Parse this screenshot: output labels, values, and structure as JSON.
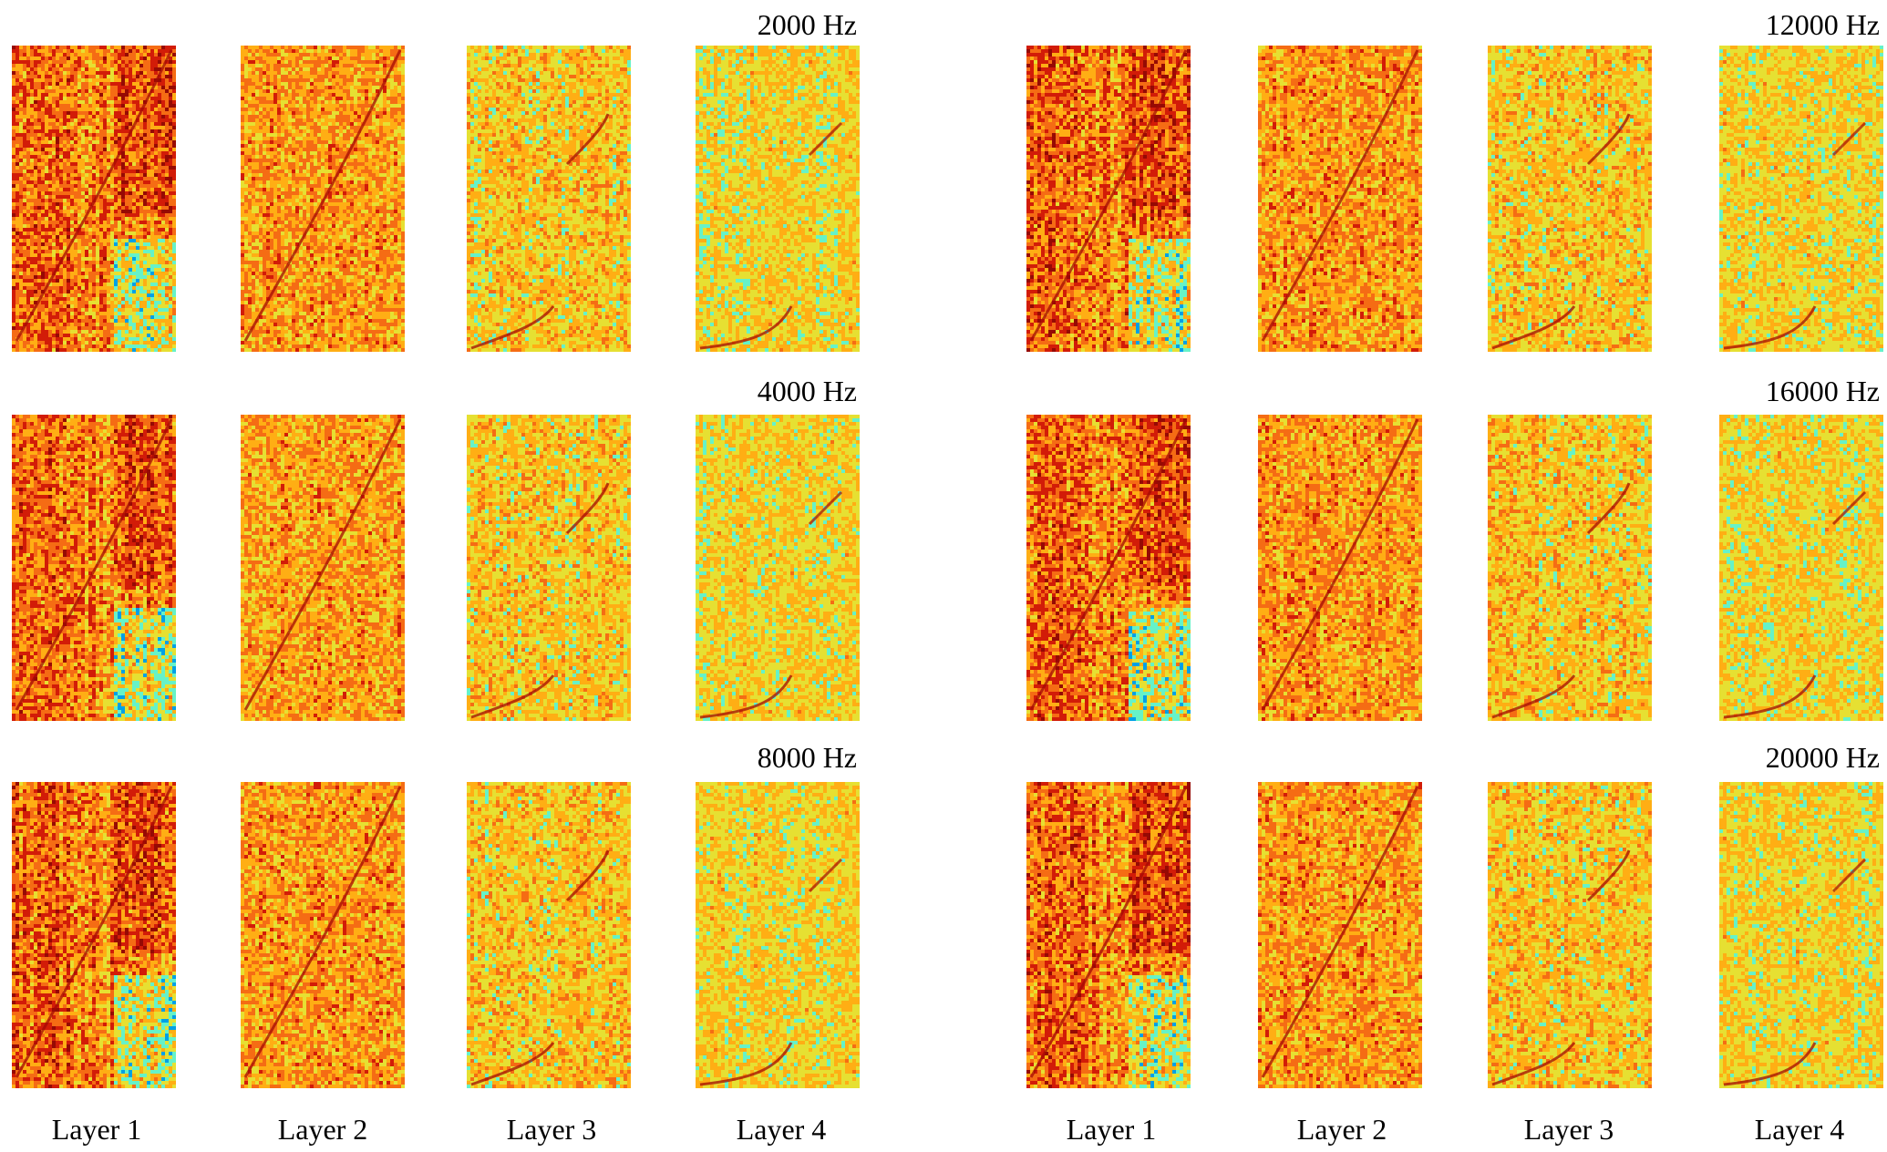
{
  "figure": {
    "frequency_labels": [
      "2000 Hz",
      "4000 Hz",
      "8000 Hz",
      "12000 Hz",
      "16000 Hz",
      "20000 Hz"
    ],
    "layer_labels": [
      "Layer 1",
      "Layer 2",
      "Layer 3",
      "Layer 4"
    ],
    "groups": [
      {
        "frequencies": [
          "2000 Hz",
          "4000 Hz",
          "8000 Hz"
        ]
      },
      {
        "frequencies": [
          "12000 Hz",
          "16000 Hz",
          "20000 Hz"
        ]
      }
    ],
    "colormap": [
      "#1e40c8",
      "#00a0e6",
      "#66f2c8",
      "#e6e032",
      "#ffae14",
      "#f56c14",
      "#d21c08",
      "#960a04"
    ]
  }
}
